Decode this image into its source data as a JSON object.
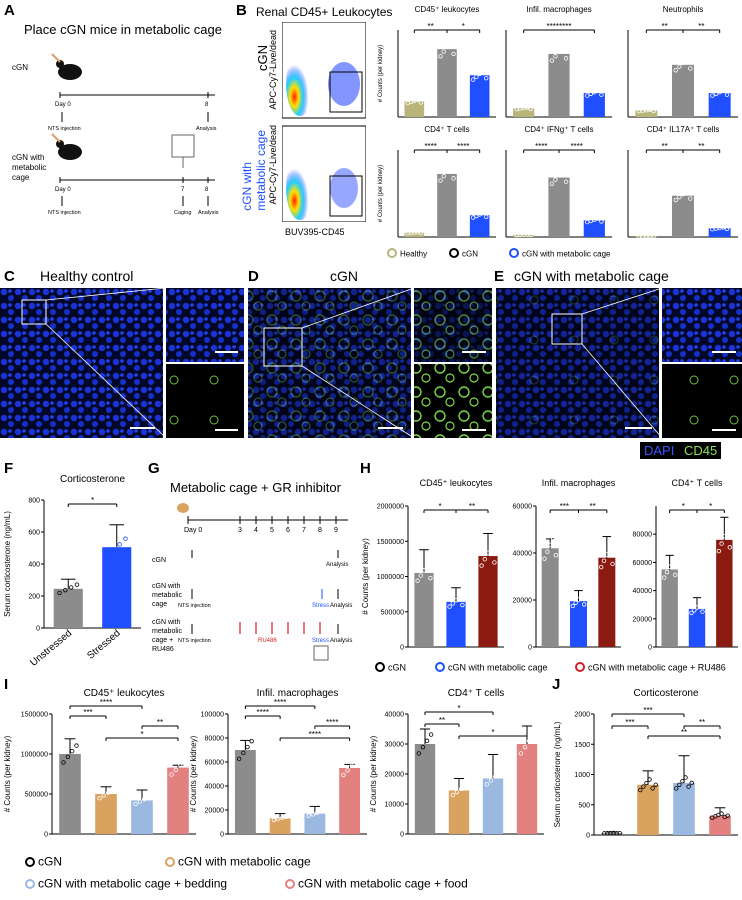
{
  "panels": {
    "A": {
      "label": "A",
      "title": "Place cGN mice in metabolic cage",
      "group1": "cGN",
      "group2_l1": "cGN with",
      "group2_l2": "metabolic",
      "group2_l3": "cage",
      "day0": "Day 0",
      "day8": "8",
      "nts": "NTS injection",
      "analysis": "Analysis",
      "day7": "7",
      "day8b": "8",
      "caging": "Caging",
      "analysis2": "Analysis",
      "day0b": "Day 0",
      "nts2": "NTS injection"
    },
    "B": {
      "label": "B",
      "title": "Renal CD45+ Leukocytes",
      "row1": "cGN",
      "row2_l1": "cGN with",
      "row2_l2": "metabolic cage",
      "yaxis": "APC-Cy7-Live/dead",
      "xaxis": "BUV395-CD45"
    },
    "C": {
      "label": "C",
      "title": "Healthy control"
    },
    "D": {
      "label": "D",
      "title": "cGN"
    },
    "E": {
      "label": "E",
      "title": "cGN with metabolic cage",
      "dapi": "DAPI",
      "cd45": "CD45"
    },
    "F": {
      "label": "F"
    },
    "G": {
      "label": "G",
      "title": "Metabolic cage + GR inhibitor",
      "g1": "cGN",
      "g2_l1": "cGN with",
      "g2_l2": "metabolic",
      "g2_l3": "cage",
      "g3_l1": "cGN with",
      "g3_l2": "metabolic",
      "g3_l3": "cage +",
      "g3_l4": "RU486",
      "day0": "Day 0",
      "ticks": [
        "3",
        "4",
        "5",
        "6",
        "7",
        "8",
        "9"
      ],
      "nts": "NTS injection",
      "analysis": "Analysis",
      "stress": "Stress",
      "ru486": "RU486"
    },
    "H": {
      "label": "H"
    },
    "I": {
      "label": "I"
    },
    "J": {
      "label": "J"
    }
  },
  "legends": {
    "B": [
      "Healthy",
      "cGN",
      "cGN with metabolic cage"
    ],
    "H": [
      "cGN",
      "cGN with metabolic cage",
      "cGN with metabolic cage + RU486"
    ],
    "I": [
      "cGN",
      "cGN with metabolic cage",
      "cGN with metabolic cage + bedding",
      "cGN with metabolic cage + food"
    ]
  },
  "colors": {
    "healthy": "#b8b47a",
    "cgn": "#8c8c8c",
    "cage": "#1f4fff",
    "ru486": "#8b1a10",
    "orange": "#d9a35f",
    "lightblue": "#9bb8e0",
    "salmon": "#e38080",
    "red": "#cc2222"
  },
  "chart_data": [
    {
      "id": "B1",
      "type": "bar",
      "title": "CD45⁺ leukocytes",
      "ylabel": "# Counts (per kidney)",
      "categories": [
        "Healthy",
        "cGN",
        "cGN with metabolic cage"
      ],
      "values": [
        18,
        78,
        48
      ],
      "ylim": [
        0,
        100
      ],
      "sig": [
        "**",
        "*"
      ]
    },
    {
      "id": "B2",
      "type": "bar",
      "title": "Infil. macrophages",
      "ylabel": "",
      "categories": [
        "Healthy",
        "cGN",
        "cGN with metabolic cage"
      ],
      "values": [
        4,
        29,
        11
      ],
      "ylim": [
        0,
        40
      ],
      "sig": [
        "********"
      ]
    },
    {
      "id": "B3",
      "type": "bar",
      "title": "Neutrophils",
      "ylabel": "",
      "categories": [
        "Healthy",
        "cGN",
        "cGN with metabolic cage"
      ],
      "values": [
        1.5,
        12,
        5.5
      ],
      "ylim": [
        0,
        20
      ],
      "sig": [
        "**",
        "**"
      ]
    },
    {
      "id": "B4",
      "type": "bar",
      "title": "CD4⁺ T cells",
      "ylabel": "# Counts (per kidney)",
      "categories": [
        "Healthy",
        "cGN",
        "cGN with metabolic cage"
      ],
      "values": [
        4,
        58,
        20
      ],
      "ylim": [
        0,
        80
      ],
      "sig": [
        "****",
        "****"
      ]
    },
    {
      "id": "B5",
      "type": "bar",
      "title": "CD4⁺ IFNg⁺ T cells",
      "ylabel": "",
      "categories": [
        "Healthy",
        "cGN",
        "cGN with metabolic cage"
      ],
      "values": [
        0.3,
        8.2,
        2.3
      ],
      "ylim": [
        0,
        12
      ],
      "sig": [
        "****",
        "****"
      ]
    },
    {
      "id": "B6",
      "type": "bar",
      "title": "CD4⁺ IL17A⁺ T cells",
      "ylabel": "",
      "categories": [
        "Healthy",
        "cGN",
        "cGN with metabolic cage"
      ],
      "values": [
        0.1,
        3.8,
        0.8
      ],
      "ylim": [
        0,
        8
      ],
      "sig": [
        "**",
        "**"
      ]
    },
    {
      "id": "F",
      "type": "bar",
      "title": "Corticosterone",
      "ylabel": "Serum corticosterone (ng/mL)",
      "categories": [
        "Unstressed",
        "Stressed"
      ],
      "values": [
        245,
        505
      ],
      "errors": [
        60,
        140
      ],
      "ylim": [
        0,
        800
      ],
      "yticks": [
        "0",
        "200",
        "400",
        "600",
        "800"
      ],
      "sig": [
        "*"
      ]
    },
    {
      "id": "H1",
      "type": "bar",
      "title": "CD45⁺ leukocytes",
      "ylabel": "# Counts (per kidney)",
      "categories": [
        "cGN",
        "cGN with metabolic cage",
        "cGN with metabolic cage + RU486"
      ],
      "values": [
        1050000,
        640000,
        1290000
      ],
      "errors": [
        330000,
        200000,
        320000
      ],
      "ylim": [
        0,
        2000000
      ],
      "yticks": [
        "0",
        "500000",
        "1000000",
        "1500000",
        "2000000"
      ],
      "sig": [
        "*",
        "**"
      ]
    },
    {
      "id": "H2",
      "type": "bar",
      "title": "Infil. macrophages",
      "ylabel": "",
      "categories": [
        "cGN",
        "cGN with metabolic cage",
        "cGN with metabolic cage + RU486"
      ],
      "values": [
        42000,
        19500,
        38000
      ],
      "errors": [
        4000,
        4500,
        9000
      ],
      "ylim": [
        0,
        60000
      ],
      "yticks": [
        "0",
        "20000",
        "40000",
        "60000"
      ],
      "sig": [
        "***",
        "**"
      ]
    },
    {
      "id": "H3",
      "type": "bar",
      "title": "CD4⁺ T cells",
      "ylabel": "",
      "categories": [
        "cGN",
        "cGN with metabolic cage",
        "cGN with metabolic cage + RU486"
      ],
      "values": [
        55000,
        27000,
        76000
      ],
      "errors": [
        10000,
        8000,
        16000
      ],
      "ylim": [
        0,
        100000
      ],
      "yticks": [
        "0",
        "20000",
        "40000",
        "60000",
        "80000"
      ],
      "sig": [
        "*",
        "*"
      ]
    },
    {
      "id": "I1",
      "type": "bar",
      "title": "CD45⁺ leukocytes",
      "ylabel": "# Counts (per kidney)",
      "categories": [
        "cGN",
        "cGN with metabolic cage",
        "cGN with metabolic cage + bedding",
        "cGN with metabolic cage + food"
      ],
      "values": [
        1000000,
        500000,
        420000,
        830000
      ],
      "errors": [
        190000,
        90000,
        130000,
        30000
      ],
      "ylim": [
        0,
        1500000
      ],
      "yticks": [
        "0",
        "500000",
        "1000000",
        "1500000"
      ],
      "sig": [
        "***",
        "****",
        "**",
        "*"
      ]
    },
    {
      "id": "I2",
      "type": "bar",
      "title": "Infil. macrophages",
      "ylabel": "# Counts (per kidney)",
      "categories": [
        "cGN",
        "cGN with metabolic cage",
        "cGN with metabolic cage + bedding",
        "cGN with metabolic cage + food"
      ],
      "values": [
        70000,
        13000,
        17000,
        55000
      ],
      "errors": [
        8000,
        4000,
        6000,
        3000
      ],
      "ylim": [
        0,
        100000
      ],
      "yticks": [
        "0",
        "20000",
        "40000",
        "60000",
        "80000",
        "100000"
      ],
      "sig": [
        "****",
        "****",
        "****",
        "****"
      ]
    },
    {
      "id": "I3",
      "type": "bar",
      "title": "CD4⁺ T cells",
      "ylabel": "# Counts (per kidney)",
      "categories": [
        "cGN",
        "cGN with metabolic cage",
        "cGN with metabolic cage + bedding",
        "cGN with metabolic cage + food"
      ],
      "values": [
        30000,
        14500,
        18500,
        30000
      ],
      "errors": [
        5000,
        4000,
        8000,
        6000
      ],
      "ylim": [
        0,
        40000
      ],
      "yticks": [
        "0",
        "10000",
        "20000",
        "30000",
        "40000"
      ],
      "sig": [
        "**",
        "*",
        "*"
      ]
    },
    {
      "id": "J",
      "type": "bar",
      "title": "Corticosterone",
      "ylabel": "Serum corticosterone (ng/mL)",
      "categories": [
        "cGN",
        "cGN with metabolic cage",
        "cGN with metabolic cage + bedding",
        "cGN with metabolic cage + food"
      ],
      "values": [
        30,
        830,
        860,
        320
      ],
      "errors": [
        20,
        230,
        450,
        130
      ],
      "ylim": [
        0,
        2000
      ],
      "yticks": [
        "0",
        "500",
        "1000",
        "1500",
        "2000"
      ],
      "sig": [
        "***",
        "***",
        "**",
        "**"
      ]
    }
  ]
}
